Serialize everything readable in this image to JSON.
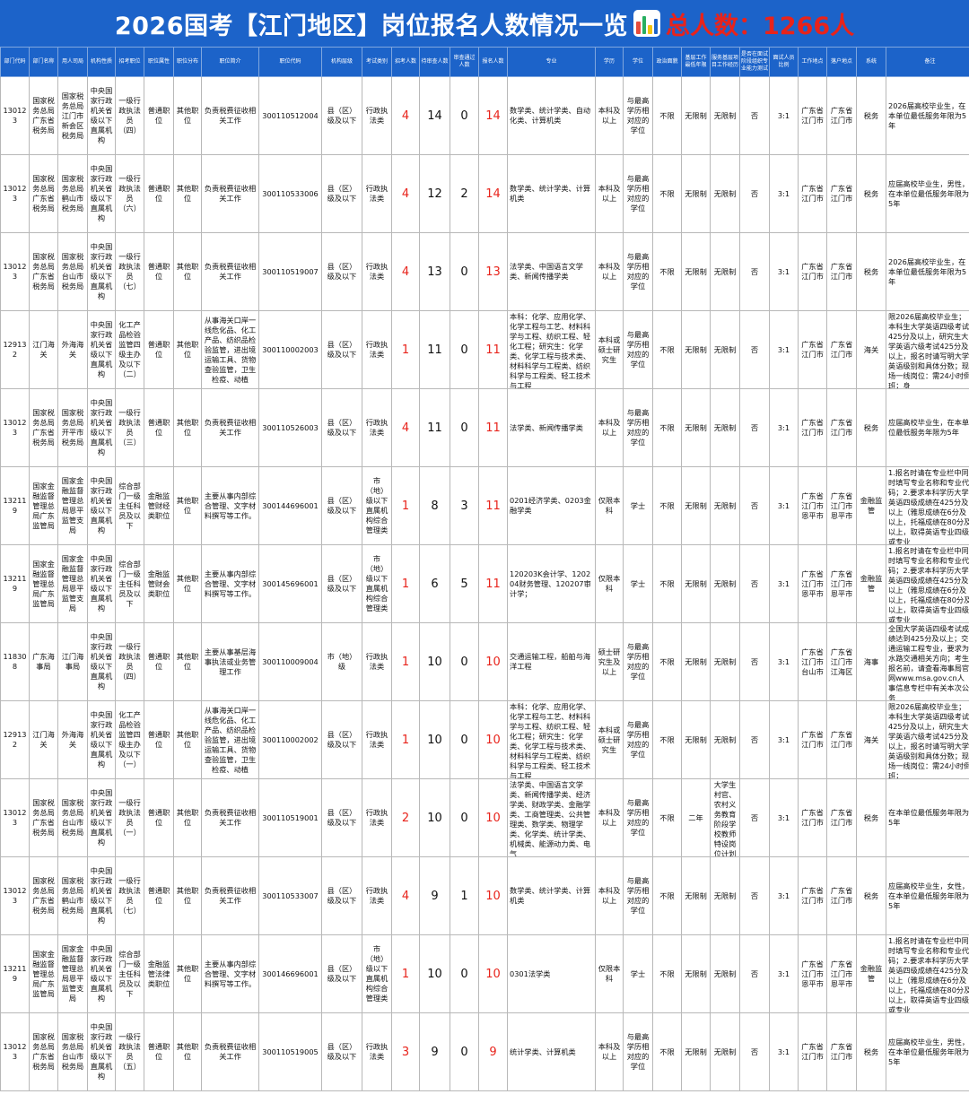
{
  "banner": {
    "title": "2026国考【江门地区】岗位报名人数情况一览",
    "total": "总人数：1266人",
    "icon_colors": [
      "#e74c3c",
      "#27ae60",
      "#f1c40f",
      "#1c63c9"
    ]
  },
  "headers": [
    "部门代码",
    "部门名称",
    "用人司局",
    "机构性质",
    "招考职位",
    "职位属性",
    "职位分布",
    "职位简介",
    "职位代码",
    "机构层级",
    "考试类别",
    "招考人数",
    "待审查人数",
    "审查通过人数",
    "报名人数",
    "专业",
    "学历",
    "学位",
    "政治面貌",
    "基层工作最低年限",
    "服务基层项目工作经历",
    "是否在面试阶段组织专业能力测试",
    "面试人员比例",
    "工作地点",
    "落户地点",
    "系统",
    "备注"
  ],
  "rows": [
    [
      "130123",
      "国家税务总局广东省税务局",
      "国家税务总局江门市新会区税务局",
      "中央国家行政机关省级以下直属机构",
      "一级行政执法员（四）",
      "普通职位",
      "其他职位",
      "负责税费征收相关工作",
      "300110512004",
      "县（区）级及以下",
      "行政执法类",
      "4",
      "14",
      "0",
      "14",
      "数学类、统计学类、自动化类、计算机类",
      "本科及以上",
      "与最高学历相对应的学位",
      "不限",
      "无限制",
      "无限制",
      "否",
      "3:1",
      "广东省江门市",
      "广东省江门市",
      "税务",
      "2026届高校毕业生，在本单位最低服务年限为5年"
    ],
    [
      "130123",
      "国家税务总局广东省税务局",
      "国家税务总局鹤山市税务局",
      "中央国家行政机关省级以下直属机构",
      "一级行政执法员（六）",
      "普通职位",
      "其他职位",
      "负责税费征收相关工作",
      "300110533006",
      "县（区）级及以下",
      "行政执法类",
      "4",
      "12",
      "2",
      "14",
      "数学类、统计学类、计算机类",
      "本科及以上",
      "与最高学历相对应的学位",
      "不限",
      "无限制",
      "无限制",
      "否",
      "3:1",
      "广东省江门市",
      "广东省江门市",
      "税务",
      "应届高校毕业生，男性，在本单位最低服务年限为5年"
    ],
    [
      "130123",
      "国家税务总局广东省税务局",
      "国家税务总局台山市税务局",
      "中央国家行政机关省级以下直属机构",
      "一级行政执法员（七）",
      "普通职位",
      "其他职位",
      "负责税费征收相关工作",
      "300110519007",
      "县（区）级及以下",
      "行政执法类",
      "4",
      "13",
      "0",
      "13",
      "法学类、中国语言文学类、新闻传播学类",
      "本科及以上",
      "与最高学历相对应的学位",
      "不限",
      "无限制",
      "无限制",
      "否",
      "3:1",
      "广东省江门市",
      "广东省江门市",
      "税务",
      "2026届高校毕业生，在本单位最低服务年限为5年"
    ],
    [
      "129132",
      "江门海关",
      "外海海关",
      "中央国家行政机关省级以下直属机构",
      "化工产品检验监管四级主办及以下（二）",
      "普通职位",
      "其他职位",
      "从事海关口岸一线危化品、化工产品、纺织品检验监管，进出境运输工具、货物查验监管，卫生检疫、动植",
      "300110002003",
      "县（区）级及以下",
      "行政执法类",
      "1",
      "11",
      "0",
      "11",
      "本科：化学、应用化学、化学工程与工艺、材料科学与工程、纺织工程、轻化工程；研究生：化学类、化学工程与技术类、材料科学与工程类、纺织科学与工程类、轻工技术与工程",
      "本科或硕士研究生",
      "与最高学历相对应的学位",
      "不限",
      "无限制",
      "无限制",
      "否",
      "3:1",
      "广东省江门市",
      "广东省江门市",
      "海关",
      "限2026届高校毕业生；本科生大学英语四级考试425分及以上，研究生大学英语六级考试425分及以上，报名时请写明大学英语级别和具体分数；现场一线岗位：需24小时倒班；身"
    ],
    [
      "130123",
      "国家税务总局广东省税务局",
      "国家税务总局开平市税务局",
      "中央国家行政机关省级以下直属机构",
      "一级行政执法员（三）",
      "普通职位",
      "其他职位",
      "负责税费征收相关工作",
      "300110526003",
      "县（区）级及以下",
      "行政执法类",
      "4",
      "11",
      "0",
      "11",
      "法学类、新闻传播学类",
      "本科及以上",
      "与最高学历相对应的学位",
      "不限",
      "无限制",
      "无限制",
      "否",
      "3:1",
      "广东省江门市",
      "广东省江门市",
      "税务",
      "应届高校毕业生，在本单位最低服务年限为5年"
    ],
    [
      "132119",
      "国家金融监督管理总局广东监管局",
      "国家金融监督管理总局恩平监管支局",
      "中央国家行政机关省级以下直属机构",
      "综合部门一级主任科员及以下",
      "金融监管财经类职位",
      "其他职位",
      "主要从事内部综合管理、文字材料撰写等工作。",
      "300144696001",
      "县（区）级及以下",
      "市（地）级以下直属机构综合管理类",
      "1",
      "8",
      "3",
      "11",
      "0201经济学类、0203金融学类",
      "仅限本科",
      "学士",
      "不限",
      "无限制",
      "无限制",
      "否",
      "3:1",
      "广东省江门市恩平市",
      "广东省江门市恩平市",
      "金融监管",
      "1.报名时请在专业栏中同时填写专业名称和专业代码；2.要求本科学历大学英语四级成绩在425分及以上（雅思成绩在6分及以上，托福成绩在80分及以上，取得英语专业四级或专业"
    ],
    [
      "132119",
      "国家金融监督管理总局广东监管局",
      "国家金融监督管理总局恩平监管支局",
      "中央国家行政机关省级以下直属机构",
      "综合部门一级主任科员及以下",
      "金融监管财会类职位",
      "其他职位",
      "主要从事内部综合管理、文字材料撰写等工作。",
      "300145696001",
      "县（区）级及以下",
      "市（地）级以下直属机构综合管理类",
      "1",
      "6",
      "5",
      "11",
      "120203K会计学、120204财务管理、120207审计学；",
      "仅限本科",
      "学士",
      "不限",
      "无限制",
      "无限制",
      "否",
      "3:1",
      "广东省江门市恩平市",
      "广东省江门市恩平市",
      "金融监管",
      "1.报名时请在专业栏中同时填写专业名称和专业代码；2.要求本科学历大学英语四级成绩在425分及以上（雅思成绩在6分及以上，托福成绩在80分及以上，取得英语专业四级或专业"
    ],
    [
      "118308",
      "广东海事局",
      "江门海事局",
      "中央国家行政机关省级以下直属机构",
      "一级行政执法员（四）",
      "普通职位",
      "其他职位",
      "主要从事基层海事执法或业务管理工作",
      "300110009004",
      "市（地）级",
      "行政执法类",
      "1",
      "10",
      "0",
      "10",
      "交通运输工程，船舶与海洋工程",
      "硕士研究生及以上",
      "与最高学历相对应的学位",
      "不限",
      "无限制",
      "无限制",
      "否",
      "3:1",
      "广东省江门市台山市",
      "广东省江门市江海区",
      "海事",
      "全国大学英语四级考试成绩达到425分及以上；交通运输工程专业，要求为水路交通相关方向；考生报名前，请查看海事局官网www.msa.gov.cn人事信息专栏中有关本次公务"
    ],
    [
      "129132",
      "江门海关",
      "外海海关",
      "中央国家行政机关省级以下直属机构",
      "化工产品检验监管四级主办及以下（一）",
      "普通职位",
      "其他职位",
      "从事海关口岸一线危化品、化工产品、纺织品检验监管，进出境运输工具、货物查验监管，卫生检疫、动植",
      "300110002002",
      "县（区）级及以下",
      "行政执法类",
      "1",
      "10",
      "0",
      "10",
      "本科：化学、应用化学、化学工程与工艺、材料科学与工程、纺织工程、轻化工程；研究生：化学类、化学工程与技术类、材料科学与工程类、纺织科学与工程类、轻工技术与工程",
      "本科或硕士研究生",
      "与最高学历相对应的学位",
      "不限",
      "无限制",
      "无限制",
      "否",
      "3:1",
      "广东省江门市",
      "广东省江门市",
      "海关",
      "限2026届高校毕业生；本科生大学英语四级考试425分及以上，研究生大学英语六级考试425分及以上，报名时请写明大学英语级别和具体分数；现场一线岗位：需24小时倒班；"
    ],
    [
      "130123",
      "国家税务总局广东省税务局",
      "国家税务总局台山市税务局",
      "中央国家行政机关省级以下直属机构",
      "一级行政执法员（一）",
      "普通职位",
      "其他职位",
      "负责税费征收相关工作",
      "300110519001",
      "县（区）级及以下",
      "行政执法类",
      "2",
      "10",
      "0",
      "10",
      "法学类、中国语言文学类、新闻传播学类、经济学类、财政学类、金融学类、工商管理类、公共管理类、数学类、物理学类、化学类、统计学类、机械类、能源动力类、电气",
      "本科及以上",
      "与最高学历相对应的学位",
      "不限",
      "二年",
      "大学生村官、农村义务教育阶段学校教师特设岗位计划",
      "否",
      "3:1",
      "广东省江门市",
      "广东省江门市",
      "税务",
      "在本单位最低服务年限为5年"
    ],
    [
      "130123",
      "国家税务总局广东省税务局",
      "国家税务总局鹤山市税务局",
      "中央国家行政机关省级以下直属机构",
      "一级行政执法员（七）",
      "普通职位",
      "其他职位",
      "负责税费征收相关工作",
      "300110533007",
      "县（区）级及以下",
      "行政执法类",
      "4",
      "9",
      "1",
      "10",
      "数学类、统计学类、计算机类",
      "本科及以上",
      "与最高学历相对应的学位",
      "不限",
      "无限制",
      "无限制",
      "否",
      "3:1",
      "广东省江门市",
      "广东省江门市",
      "税务",
      "应届高校毕业生，女性，在本单位最低服务年限为5年"
    ],
    [
      "132119",
      "国家金融监督管理总局广东监管局",
      "国家金融监督管理总局恩平监管支局",
      "中央国家行政机关省级以下直属机构",
      "综合部门一级主任科员及以下",
      "金融监管法律类职位",
      "其他职位",
      "主要从事内部综合管理、文字材料撰写等工作。",
      "300146696001",
      "县（区）级及以下",
      "市（地）级以下直属机构综合管理类",
      "1",
      "10",
      "0",
      "10",
      "0301法学类",
      "仅限本科",
      "学士",
      "不限",
      "无限制",
      "无限制",
      "否",
      "3:1",
      "广东省江门市恩平市",
      "广东省江门市恩平市",
      "金融监管",
      "1.报名时请在专业栏中同时填写专业名称和专业代码；2.要求本科学历大学英语四级成绩在425分及以上（雅思成绩在6分及以上，托福成绩在80分及以上，取得英语专业四级或专业"
    ],
    [
      "130123",
      "国家税务总局广东省税务局",
      "国家税务总局台山市税务局",
      "中央国家行政机关省级以下直属机构",
      "一级行政执法员（五）",
      "普通职位",
      "其他职位",
      "负责税费征收相关工作",
      "300110519005",
      "县（区）级及以下",
      "行政执法类",
      "3",
      "9",
      "0",
      "9",
      "统计学类、计算机类",
      "本科及以上",
      "与最高学历相对应的学位",
      "不限",
      "无限制",
      "无限制",
      "否",
      "3:1",
      "广东省江门市",
      "广东省江门市",
      "税务",
      "应届高校毕业生，男性，在本单位最低服务年限为5年"
    ]
  ]
}
